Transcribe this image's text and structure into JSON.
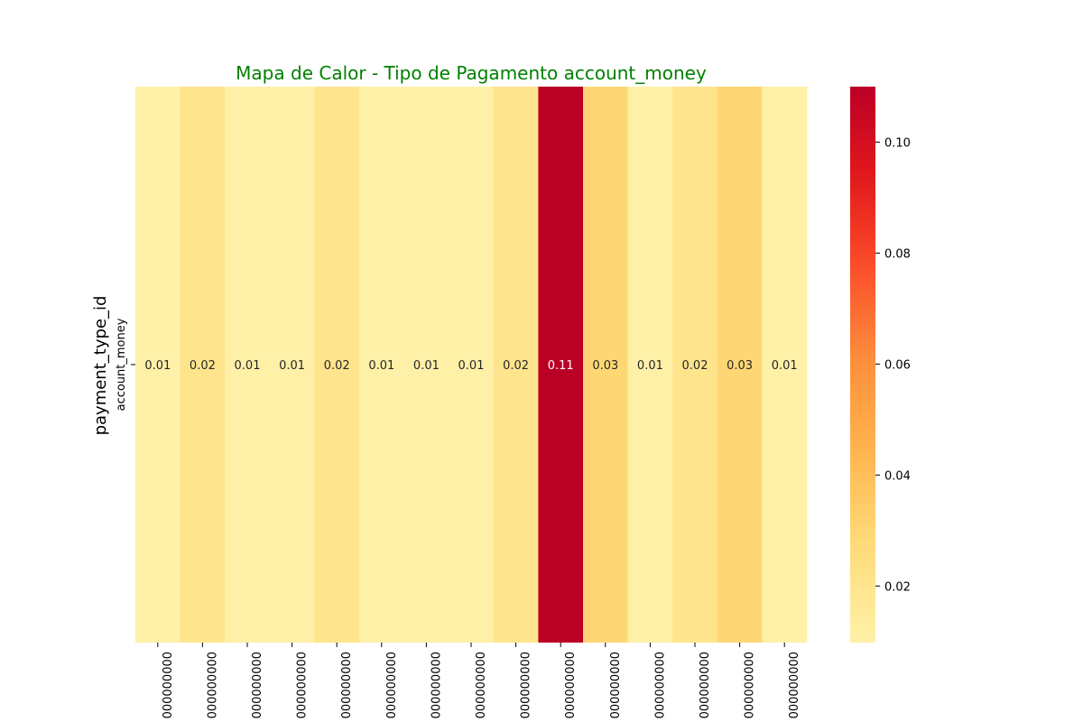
{
  "chart_data": {
    "type": "heatmap",
    "title": "Mapa de Calor - Tipo de Pagamento account_money",
    "title_color": "#008000",
    "ylabel": "payment_type_id",
    "xlabel": "",
    "row_labels": [
      "account_money"
    ],
    "x_tick_labels": [
      "000000000",
      "000000000",
      "000000000",
      "000000000",
      "000000000",
      "000000000",
      "000000000",
      "000000000",
      "000000000",
      "000000000",
      "000000000",
      "000000000",
      "000000000",
      "000000000",
      "000000000"
    ],
    "values": [
      [
        0.01,
        0.02,
        0.01,
        0.01,
        0.02,
        0.01,
        0.01,
        0.01,
        0.02,
        0.11,
        0.03,
        0.01,
        0.02,
        0.03,
        0.01
      ]
    ],
    "cell_labels": [
      [
        "0.01",
        "0.02",
        "0.01",
        "0.01",
        "0.02",
        "0.01",
        "0.01",
        "0.01",
        "0.02",
        "0.11",
        "0.03",
        "0.01",
        "0.02",
        "0.03",
        "0.01"
      ]
    ],
    "colormap": "YlOrRd",
    "colorbar": {
      "vmin": 0.0098,
      "vmax": 0.11,
      "ticks": [
        "0.02",
        "0.04",
        "0.06",
        "0.08",
        "0.10"
      ]
    },
    "grid": false,
    "legend": "colorbar-right"
  }
}
